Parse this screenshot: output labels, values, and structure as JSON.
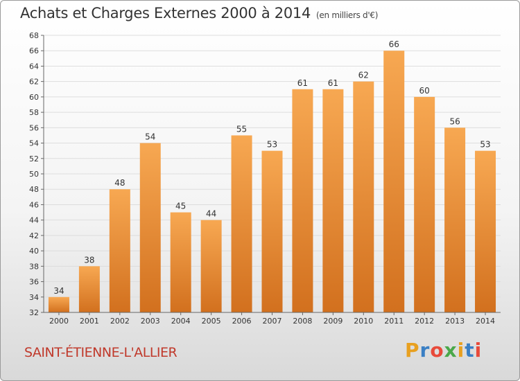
{
  "header": {
    "title": "Achats et Charges Externes 2000 à 2014",
    "subtitle": "(en milliers d'€)"
  },
  "footer": {
    "town": "SAINT-ÉTIENNE-L'ALLIER"
  },
  "logo": {
    "letters": [
      "P",
      "r",
      "o",
      "x",
      "i",
      "t",
      "i"
    ],
    "colors": [
      "#e8a020",
      "#3a7fc4",
      "#e84a3a",
      "#4aa84a",
      "#e8a020",
      "#3a7fc4",
      "#e84a3a"
    ]
  },
  "colors": {
    "bar_top": "#f7a852",
    "bar_bottom": "#d2701e",
    "grid": "#dddddd"
  },
  "chart_data": {
    "type": "bar",
    "title": "Achats et Charges Externes 2000 à 2014",
    "subtitle": "(en milliers d'€)",
    "categories": [
      "2000",
      "2001",
      "2002",
      "2003",
      "2004",
      "2005",
      "2006",
      "2007",
      "2008",
      "2009",
      "2010",
      "2011",
      "2012",
      "2013",
      "2014"
    ],
    "values": [
      34,
      38,
      48,
      54,
      45,
      44,
      55,
      53,
      61,
      61,
      62,
      66,
      60,
      56,
      53
    ],
    "ylim": [
      32,
      68
    ],
    "ytick_step": 2,
    "grid": true,
    "xlabel": "",
    "ylabel": ""
  }
}
